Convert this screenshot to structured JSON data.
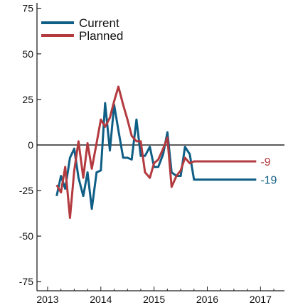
{
  "chart_data": {
    "type": "line",
    "x_ticks": [
      2013,
      2014,
      2015,
      2016,
      2017
    ],
    "x_tick_labels": [
      "2013",
      "2014",
      "2015",
      "2016",
      "2017"
    ],
    "xlim": [
      2012.8,
      2017.45
    ],
    "y_ticks": [
      75,
      50,
      25,
      0,
      -25,
      -50,
      -75
    ],
    "y_tick_labels": [
      "75",
      "50",
      "25",
      "0",
      "-25",
      "-50",
      "-75"
    ],
    "ylim": [
      -80,
      78
    ],
    "zero_line": true,
    "grid": false,
    "legend_position": "top-left",
    "series": [
      {
        "name": "Current",
        "color": "#0f5e85",
        "end_label": "-19",
        "x": [
          2013.17,
          2013.25,
          2013.33,
          2013.42,
          2013.5,
          2013.58,
          2013.67,
          2013.75,
          2013.83,
          2013.92,
          2014.0,
          2014.08,
          2014.17,
          2014.25,
          2014.33,
          2014.42,
          2014.5,
          2014.58,
          2014.67,
          2014.75,
          2014.83,
          2014.92,
          2015.0,
          2015.08,
          2015.17,
          2015.25,
          2015.33,
          2015.42,
          2015.5,
          2015.58,
          2015.67,
          2015.75,
          2015.83,
          2015.92,
          2016.0,
          2016.08,
          2016.17,
          2016.25,
          2016.33,
          2016.42,
          2016.5,
          2016.58,
          2016.67,
          2016.75,
          2016.83,
          2016.92,
          2017.0,
          2017.08
        ],
        "y": [
          -28,
          -17,
          -24,
          -7,
          -2,
          -18,
          -28,
          -15,
          -35,
          -15,
          -14,
          23,
          -3,
          22,
          8,
          -7,
          -7,
          -8,
          14,
          -6,
          -6,
          -1,
          -12,
          -12,
          -5,
          7,
          -15,
          -17,
          -17,
          -1,
          -5,
          -19,
          -19,
          -19,
          -19,
          -19,
          -19,
          -19,
          -19,
          -19,
          -19,
          -19,
          -19,
          -19,
          -19,
          -19,
          -19,
          -19
        ]
      },
      {
        "name": "Planned",
        "color": "#b33a3f",
        "end_label": "-9",
        "x": [
          2013.17,
          2013.25,
          2013.33,
          2013.42,
          2013.5,
          2013.58,
          2013.67,
          2013.75,
          2013.83,
          2013.92,
          2014.0,
          2014.08,
          2014.17,
          2014.25,
          2014.33,
          2014.42,
          2014.5,
          2014.58,
          2014.67,
          2014.75,
          2014.83,
          2014.92,
          2015.0,
          2015.08,
          2015.17,
          2015.25,
          2015.33,
          2015.42,
          2015.5,
          2015.58,
          2015.67,
          2015.75,
          2015.83,
          2015.92,
          2016.0,
          2016.08,
          2016.17,
          2016.25,
          2016.33,
          2016.42,
          2016.5,
          2016.58,
          2016.67,
          2016.75,
          2016.83,
          2016.92,
          2017.0,
          2017.08
        ],
        "y": [
          -22,
          -26,
          -12,
          -40,
          -14,
          2,
          -18,
          1,
          -13,
          1,
          14,
          10,
          15,
          24,
          32,
          22,
          14,
          5,
          2,
          2,
          -15,
          -18,
          -10,
          -8,
          -2,
          4,
          -23,
          -17,
          -14,
          -7,
          -10,
          -9,
          -9,
          -9,
          -9,
          -9,
          -9,
          -9,
          -9,
          -9,
          -9,
          -9,
          -9,
          -9,
          -9,
          -9,
          -9,
          -9
        ]
      }
    ]
  }
}
